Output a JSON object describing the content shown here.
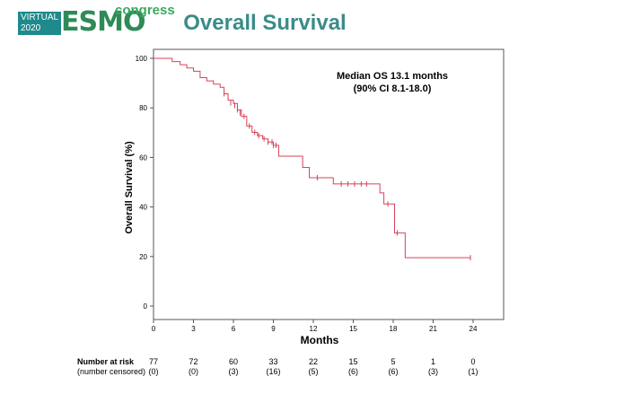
{
  "header": {
    "logo_line1": "VIRTUAL",
    "logo_line2": "2020",
    "logo_brand": "ESMO",
    "logo_suffix": "congress",
    "title": "Overall Survival"
  },
  "chart_data": {
    "type": "line",
    "title": "",
    "xlabel": "Months",
    "ylabel": "Overall Survival (%)",
    "xlim": [
      0,
      24
    ],
    "ylim": [
      0,
      100
    ],
    "xticks": [
      0,
      3,
      6,
      9,
      12,
      15,
      18,
      21,
      24
    ],
    "yticks": [
      0,
      20,
      40,
      60,
      80,
      100
    ],
    "annotation_line1": "Median OS 13.1 months",
    "annotation_line2": "(90% CI 8.1-18.0)",
    "line_color": "#d9405a",
    "series": [
      {
        "x": [
          0,
          1.2,
          1.4,
          2.0,
          2.5,
          3.0,
          3.5,
          4.0,
          4.5,
          5.0,
          5.3,
          5.6,
          6.0,
          6.3,
          6.6,
          7.0,
          7.4,
          7.8,
          8.2,
          8.6,
          9.0,
          9.4,
          10.0,
          11.2,
          11.7,
          12.9,
          13.5,
          16.2,
          17.0,
          17.3,
          18.1,
          18.9,
          23.8
        ],
        "y": [
          100,
          100,
          98.7,
          97.4,
          96.1,
          94.8,
          92.2,
          90.9,
          89.6,
          88.3,
          85.7,
          83.1,
          81.8,
          79.2,
          76.6,
          72.7,
          70.1,
          68.8,
          67.5,
          66.2,
          64.9,
          60.5,
          60.5,
          56.0,
          51.8,
          51.8,
          49.3,
          49.3,
          45.7,
          41.2,
          29.5,
          19.5,
          19.5
        ]
      }
    ],
    "censor_marks": [
      {
        "x": 5.3,
        "y": 85.7
      },
      {
        "x": 5.8,
        "y": 82.0
      },
      {
        "x": 6.1,
        "y": 81.0
      },
      {
        "x": 6.3,
        "y": 79.2
      },
      {
        "x": 6.5,
        "y": 78.0
      },
      {
        "x": 6.8,
        "y": 76.6
      },
      {
        "x": 7.2,
        "y": 72.7
      },
      {
        "x": 7.6,
        "y": 70.1
      },
      {
        "x": 7.9,
        "y": 68.8
      },
      {
        "x": 8.3,
        "y": 67.5
      },
      {
        "x": 8.6,
        "y": 66.2
      },
      {
        "x": 8.9,
        "y": 66.2
      },
      {
        "x": 9.0,
        "y": 64.9
      },
      {
        "x": 9.2,
        "y": 64.9
      },
      {
        "x": 12.3,
        "y": 51.8
      },
      {
        "x": 14.1,
        "y": 49.3
      },
      {
        "x": 14.6,
        "y": 49.3
      },
      {
        "x": 15.1,
        "y": 49.3
      },
      {
        "x": 15.6,
        "y": 49.3
      },
      {
        "x": 16.0,
        "y": 49.3
      },
      {
        "x": 17.6,
        "y": 41.2
      },
      {
        "x": 18.3,
        "y": 29.5
      },
      {
        "x": 23.8,
        "y": 19.5
      }
    ]
  },
  "risk_table": {
    "label_row1": "Number at risk",
    "label_row2": "(number censored)",
    "times": [
      0,
      3,
      6,
      9,
      12,
      15,
      18,
      21,
      24
    ],
    "at_risk": [
      "77",
      "72",
      "60",
      "33",
      "22",
      "15",
      "5",
      "1",
      "0"
    ],
    "censored": [
      "(0)",
      "(0)",
      "(3)",
      "(16)",
      "(5)",
      "(6)",
      "(6)",
      "(3)",
      "(1)"
    ]
  }
}
